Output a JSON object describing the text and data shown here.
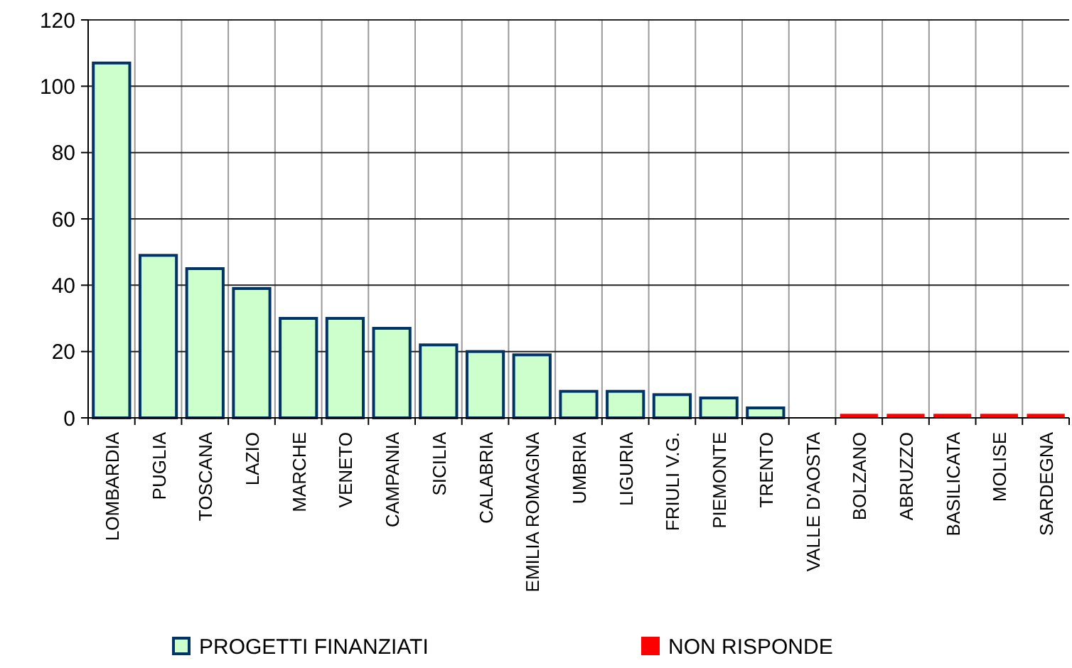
{
  "chart_data": {
    "type": "bar",
    "categories": [
      "LOMBARDIA",
      "PUGLIA",
      "TOSCANA",
      "LAZIO",
      "MARCHE",
      "VENETO",
      "CAMPANIA",
      "SICILIA",
      "CALABRIA",
      "EMILIA ROMAGNA",
      "UMBRIA",
      "LIGURIA",
      "FRIULI V.G.",
      "PIEMONTE",
      "TRENTO",
      "VALLE D'AOSTA",
      "BOLZANO",
      "ABRUZZO",
      "BASILICATA",
      "MOLISE",
      "SARDEGNA"
    ],
    "series": [
      {
        "name": "PROGETTI FINANZIATI",
        "color": "#ccffcc",
        "values": [
          107,
          49,
          45,
          39,
          30,
          30,
          27,
          22,
          20,
          19,
          8,
          8,
          7,
          6,
          3,
          null,
          null,
          null,
          null,
          null,
          null
        ]
      },
      {
        "name": "NON RISPONDE",
        "color": "#ff0000",
        "values": [
          null,
          null,
          null,
          null,
          null,
          null,
          null,
          null,
          null,
          null,
          null,
          null,
          null,
          null,
          null,
          null,
          1,
          1,
          1,
          1,
          1
        ]
      }
    ],
    "ylim": [
      0,
      120
    ],
    "yticks": [
      0,
      20,
      40,
      60,
      80,
      100,
      120
    ],
    "grid": true,
    "legend": "bottom"
  }
}
